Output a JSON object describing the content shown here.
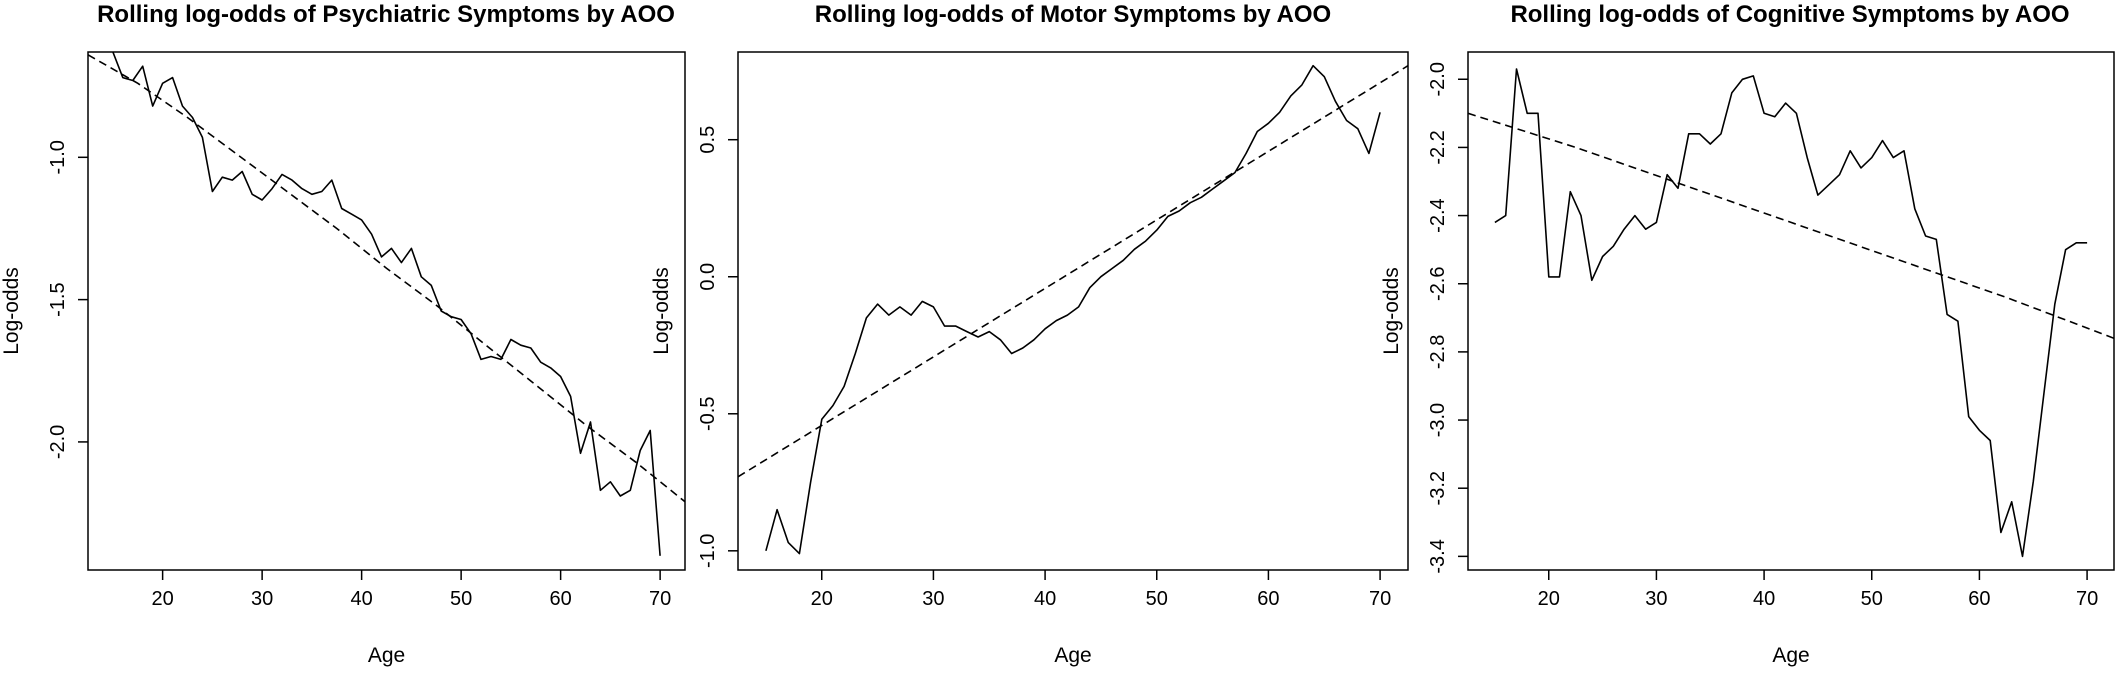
{
  "chart_data": [
    {
      "type": "line",
      "title": "Rolling log-odds of Psychiatric Symptoms by AOO",
      "xlabel": "Age",
      "ylabel": "Log-odds",
      "xlim": [
        12.5,
        72.5
      ],
      "ylim": [
        -2.45,
        -0.63
      ],
      "xticks": [
        20,
        30,
        40,
        50,
        60,
        70
      ],
      "yticks": [
        -1.0,
        -1.5,
        -2.0
      ],
      "ytick_labels": [
        "-1.0",
        "-1.5",
        "-2.0"
      ],
      "grid": false,
      "series": [
        {
          "style": "solid",
          "x": [
            15,
            16,
            17,
            18,
            19,
            20,
            21,
            22,
            23,
            24,
            25,
            26,
            27,
            28,
            29,
            30,
            31,
            32,
            33,
            34,
            35,
            36,
            37,
            38,
            39,
            40,
            41,
            42,
            43,
            44,
            45,
            46,
            47,
            48,
            49,
            50,
            51,
            52,
            53,
            54,
            55,
            56,
            57,
            58,
            59,
            60,
            61,
            62,
            63,
            64,
            65,
            66,
            67,
            68,
            69,
            70
          ],
          "y": [
            -0.63,
            -0.72,
            -0.73,
            -0.68,
            -0.82,
            -0.74,
            -0.72,
            -0.82,
            -0.86,
            -0.93,
            -1.12,
            -1.07,
            -1.08,
            -1.05,
            -1.13,
            -1.15,
            -1.11,
            -1.06,
            -1.08,
            -1.11,
            -1.13,
            -1.12,
            -1.08,
            -1.18,
            -1.2,
            -1.22,
            -1.27,
            -1.35,
            -1.32,
            -1.37,
            -1.32,
            -1.42,
            -1.45,
            -1.54,
            -1.56,
            -1.57,
            -1.62,
            -1.71,
            -1.7,
            -1.71,
            -1.64,
            -1.66,
            -1.67,
            -1.72,
            -1.74,
            -1.77,
            -1.84,
            -2.04,
            -1.93,
            -2.17,
            -2.14,
            -2.19,
            -2.17,
            -2.03,
            -1.96,
            -2.4
          ]
        },
        {
          "style": "dashed",
          "x": [
            12.5,
            17.5,
            22.5,
            27.5,
            32.5,
            37.5,
            42.5,
            47.5,
            52.5,
            57.5,
            62.5,
            67.5,
            72.5
          ],
          "y": [
            -0.64,
            -0.74,
            -0.86,
            -0.99,
            -1.12,
            -1.25,
            -1.39,
            -1.52,
            -1.66,
            -1.8,
            -1.94,
            -2.07,
            -2.21
          ]
        }
      ]
    },
    {
      "type": "line",
      "title": "Rolling log-odds of Motor Symptoms by AOO",
      "xlabel": "Age",
      "ylabel": "Log-odds",
      "xlim": [
        12.5,
        72.5
      ],
      "ylim": [
        -1.07,
        0.82
      ],
      "xticks": [
        20,
        30,
        40,
        50,
        60,
        70
      ],
      "yticks": [
        0.5,
        0.0,
        -0.5,
        -1.0
      ],
      "ytick_labels": [
        "0.5",
        "0.0",
        "-0.5",
        "-1.0"
      ],
      "grid": false,
      "series": [
        {
          "style": "solid",
          "x": [
            15,
            16,
            17,
            18,
            19,
            20,
            21,
            22,
            23,
            24,
            25,
            26,
            27,
            28,
            29,
            30,
            31,
            32,
            33,
            34,
            35,
            36,
            37,
            38,
            39,
            40,
            41,
            42,
            43,
            44,
            45,
            46,
            47,
            48,
            49,
            50,
            51,
            52,
            53,
            54,
            55,
            56,
            57,
            58,
            59,
            60,
            61,
            62,
            63,
            64,
            65,
            66,
            67,
            68,
            69,
            70
          ],
          "y": [
            -1.0,
            -0.85,
            -0.97,
            -1.01,
            -0.75,
            -0.52,
            -0.47,
            -0.4,
            -0.28,
            -0.15,
            -0.1,
            -0.14,
            -0.11,
            -0.14,
            -0.09,
            -0.11,
            -0.18,
            -0.18,
            -0.2,
            -0.22,
            -0.2,
            -0.23,
            -0.28,
            -0.26,
            -0.23,
            -0.19,
            -0.16,
            -0.14,
            -0.11,
            -0.04,
            0.0,
            0.03,
            0.06,
            0.1,
            0.13,
            0.17,
            0.22,
            0.24,
            0.27,
            0.29,
            0.32,
            0.35,
            0.38,
            0.45,
            0.53,
            0.56,
            0.6,
            0.66,
            0.7,
            0.77,
            0.73,
            0.64,
            0.57,
            0.54,
            0.45,
            0.6
          ]
        },
        {
          "style": "dashed",
          "x": [
            12.5,
            72.5
          ],
          "y": [
            -0.73,
            0.77
          ]
        }
      ]
    },
    {
      "type": "line",
      "title": "Rolling log-odds of Cognitive Symptoms by AOO",
      "xlabel": "Age",
      "ylabel": "Log-odds",
      "xlim": [
        12.5,
        72.5
      ],
      "ylim": [
        -3.44,
        -1.92
      ],
      "xticks": [
        20,
        30,
        40,
        50,
        60,
        70
      ],
      "yticks": [
        -2.0,
        -2.2,
        -2.4,
        -2.6,
        -2.8,
        -3.0,
        -3.2,
        -3.4
      ],
      "ytick_labels": [
        "-2.0",
        "-2.2",
        "-2.4",
        "-2.6",
        "-2.8",
        "-3.0",
        "-3.2",
        "-3.4"
      ],
      "grid": false,
      "series": [
        {
          "style": "solid",
          "x": [
            15,
            16,
            17,
            18,
            19,
            20,
            21,
            22,
            23,
            24,
            25,
            26,
            27,
            28,
            29,
            30,
            31,
            32,
            33,
            34,
            35,
            36,
            37,
            38,
            39,
            40,
            41,
            42,
            43,
            44,
            45,
            46,
            47,
            48,
            49,
            50,
            51,
            52,
            53,
            54,
            55,
            56,
            57,
            58,
            59,
            60,
            61,
            62,
            63,
            64,
            65,
            66,
            67,
            68,
            69,
            70
          ],
          "y": [
            -2.42,
            -2.4,
            -1.97,
            -2.1,
            -2.1,
            -2.58,
            -2.58,
            -2.33,
            -2.4,
            -2.59,
            -2.52,
            -2.49,
            -2.44,
            -2.4,
            -2.44,
            -2.42,
            -2.28,
            -2.32,
            -2.16,
            -2.16,
            -2.19,
            -2.16,
            -2.04,
            -2.0,
            -1.99,
            -2.1,
            -2.11,
            -2.07,
            -2.1,
            -2.23,
            -2.34,
            -2.31,
            -2.28,
            -2.21,
            -2.26,
            -2.23,
            -2.18,
            -2.23,
            -2.21,
            -2.38,
            -2.46,
            -2.47,
            -2.69,
            -2.71,
            -2.99,
            -3.03,
            -3.06,
            -3.33,
            -3.24,
            -3.4,
            -3.18,
            -2.92,
            -2.66,
            -2.5,
            -2.48,
            -2.48
          ]
        },
        {
          "style": "dashed",
          "x": [
            12.5,
            22.5,
            32.5,
            42.5,
            52.5,
            62.5,
            72.5
          ],
          "y": [
            -2.1,
            -2.2,
            -2.31,
            -2.42,
            -2.53,
            -2.64,
            -2.76
          ]
        }
      ]
    }
  ]
}
